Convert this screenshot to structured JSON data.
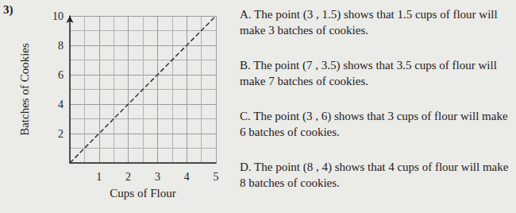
{
  "chart_data": {
    "type": "line",
    "x_label": "Cups of Flour",
    "y_label": "Batches of Cookies",
    "x": [
      0,
      1,
      2,
      3,
      4,
      5
    ],
    "values": [
      0,
      2,
      4,
      6,
      8,
      10
    ],
    "xlim": [
      0,
      5
    ],
    "xticks": [
      1,
      2,
      3,
      4,
      5
    ],
    "ylim": [
      0,
      10
    ],
    "yticks": [
      2,
      4,
      6,
      8,
      10
    ],
    "grid": true,
    "color": "#333333",
    "line_style": "dashed"
  },
  "question": {
    "number": "3)",
    "choices": [
      "A. The point (3 , 1.5) shows that 1.5 cups of flour will make 3 batches of cookies.",
      "B. The point (7 , 3.5) shows that 3.5 cups of flour will make 7 batches of cookies.",
      "C. The point (3 , 6) shows that 3 cups of flour will make 6 batches of cookies.",
      "D. The point (8 , 4) shows that 4 cups of flour will make 8 batches of cookies."
    ]
  }
}
